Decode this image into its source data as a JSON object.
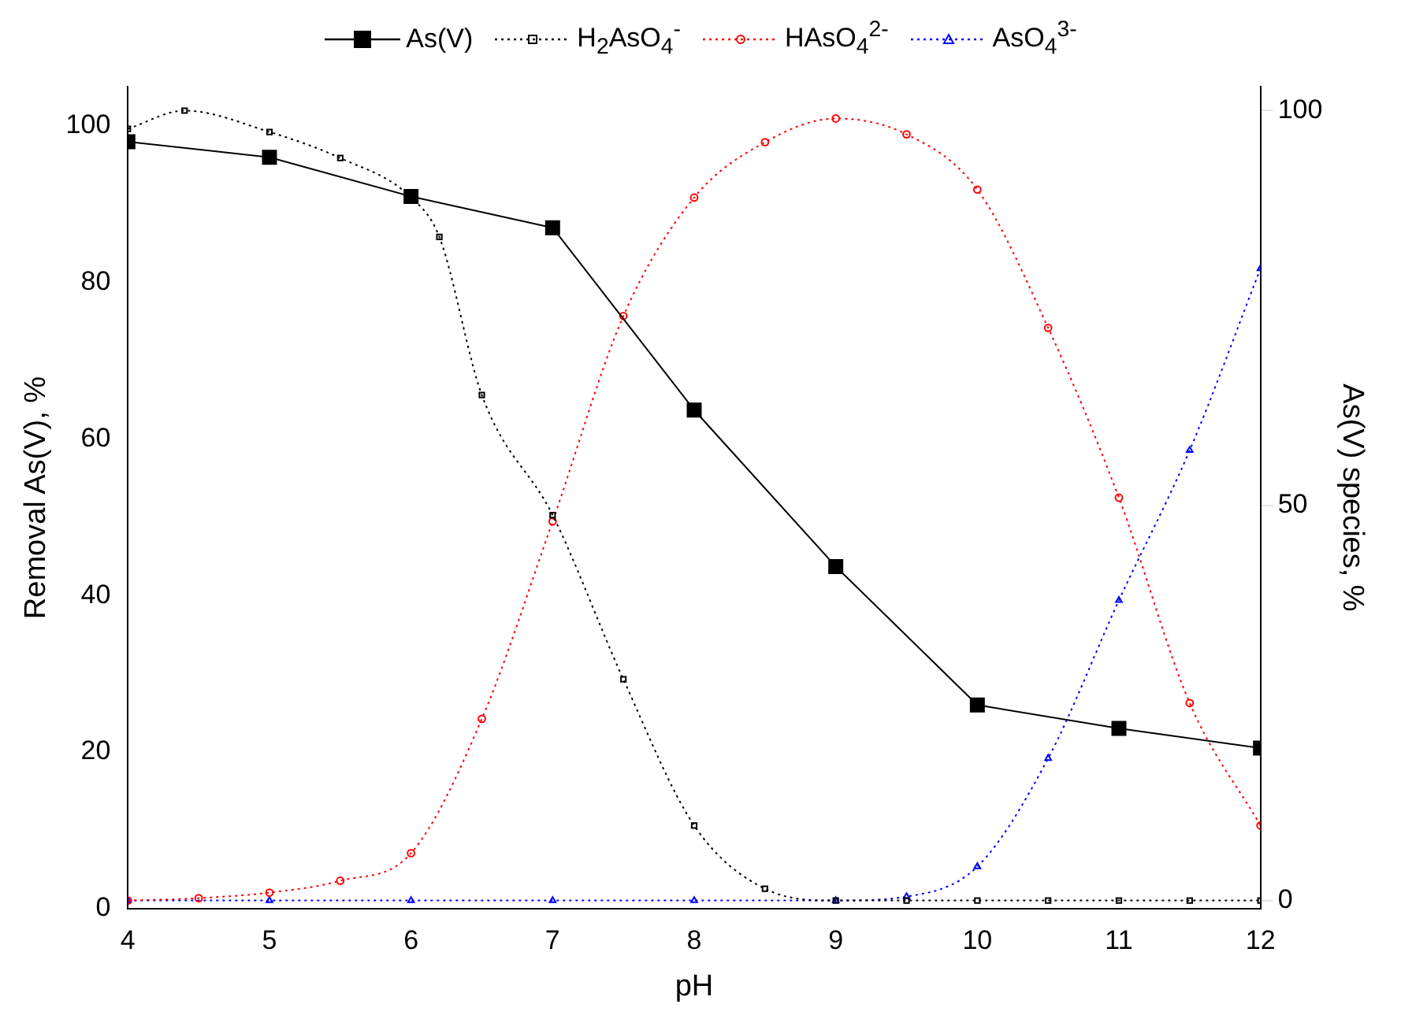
{
  "chart_data": {
    "type": "line",
    "xlabel": "pH",
    "ylabel": "Removal As(V), %",
    "y2label": "As(V) species, %",
    "xlim": [
      4,
      12
    ],
    "xticks": [
      4,
      5,
      6,
      7,
      8,
      9,
      10,
      11,
      12
    ],
    "ylim": [
      0,
      105
    ],
    "yticks": [
      0,
      20,
      40,
      60,
      80,
      100
    ],
    "y2lim": [
      -1,
      103
    ],
    "y2ticks": [
      0,
      50,
      100
    ],
    "grid": false,
    "legend": "top",
    "series": [
      {
        "name": "As(V)",
        "color": "#000000",
        "marker": "square",
        "line_style": "solid",
        "x": [
          4,
          5,
          6,
          7,
          8,
          9,
          10,
          11,
          12
        ],
        "values": [
          98,
          96,
          91,
          87,
          63.7,
          43.7,
          26,
          23,
          20.5
        ]
      },
      {
        "name": "H$_{2}$AsO$_{4}$$^{-}$",
        "color": "#000000",
        "marker": "square",
        "line_style": "dotted",
        "axis": "y2",
        "x": [
          4,
          4.4,
          5,
          5.5,
          6,
          6.2,
          6.5,
          7,
          7.5,
          8,
          8.5,
          9,
          9.5,
          10,
          10.5,
          11,
          11.5,
          12
        ],
        "values": [
          97.7,
          100,
          97.3,
          94,
          89,
          84,
          64,
          48.8,
          28,
          9.5,
          1.5,
          0,
          0,
          0,
          0,
          0,
          0,
          0
        ]
      },
      {
        "name": "HAsO$_{4}$$^{2-}$",
        "color": "#ff0000",
        "marker": "circle",
        "line_style": "dotted",
        "axis": "y2",
        "x": [
          4,
          4.5,
          5,
          5.5,
          6,
          6.5,
          7,
          7.5,
          8,
          8.5,
          9,
          9.5,
          10,
          10.5,
          11,
          11.5,
          12
        ],
        "values": [
          0,
          0.3,
          1,
          2.5,
          6,
          23,
          48,
          74,
          89,
          96,
          99,
          97,
          90,
          72.5,
          51,
          25,
          9.5
        ]
      },
      {
        "name": "AsO$_{4}$$^{3-}$",
        "color": "#0000ff",
        "marker": "triangle",
        "line_style": "dotted",
        "axis": "y2",
        "x": [
          4,
          5,
          6,
          7,
          8,
          9,
          9.5,
          10,
          10.5,
          11,
          11.5,
          12
        ],
        "values": [
          0,
          0,
          0,
          0,
          0,
          0,
          0.5,
          4.3,
          18,
          38,
          57,
          80
        ]
      }
    ]
  }
}
